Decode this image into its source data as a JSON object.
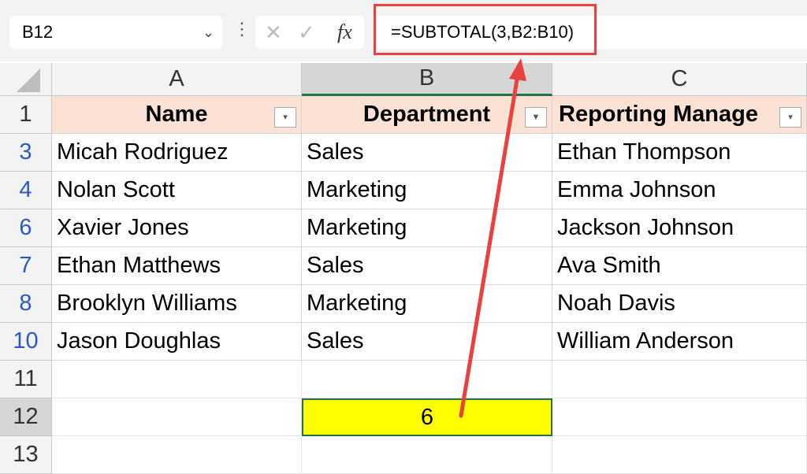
{
  "name_box": "B12",
  "formula": "=SUBTOTAL(3,B2:B10)",
  "fx_label": "fx",
  "columns": [
    "A",
    "B",
    "C"
  ],
  "header_row": "1",
  "headers": [
    "Name",
    "Department",
    "Reporting Manage"
  ],
  "rows": [
    {
      "row": "3",
      "cells": [
        "Micah Rodriguez",
        "Sales",
        "Ethan Thompson"
      ]
    },
    {
      "row": "4",
      "cells": [
        "Nolan Scott",
        "Marketing",
        "Emma Johnson"
      ]
    },
    {
      "row": "6",
      "cells": [
        "Xavier Jones",
        "Marketing",
        "Jackson Johnson"
      ]
    },
    {
      "row": "7",
      "cells": [
        "Ethan Matthews",
        "Sales",
        "Ava Smith"
      ]
    },
    {
      "row": "8",
      "cells": [
        "Brooklyn Williams",
        "Marketing",
        "Noah Davis"
      ]
    },
    {
      "row": "10",
      "cells": [
        "Jason Doughlas",
        "Sales",
        "William Anderson"
      ]
    }
  ],
  "extra_rows": [
    "11",
    "12",
    "13"
  ],
  "result": "6",
  "colors": {
    "header_fill": "#fbe2d5",
    "result_fill": "#ffff00",
    "annotation": "#e8413e",
    "row_number": "#2b57c8"
  }
}
